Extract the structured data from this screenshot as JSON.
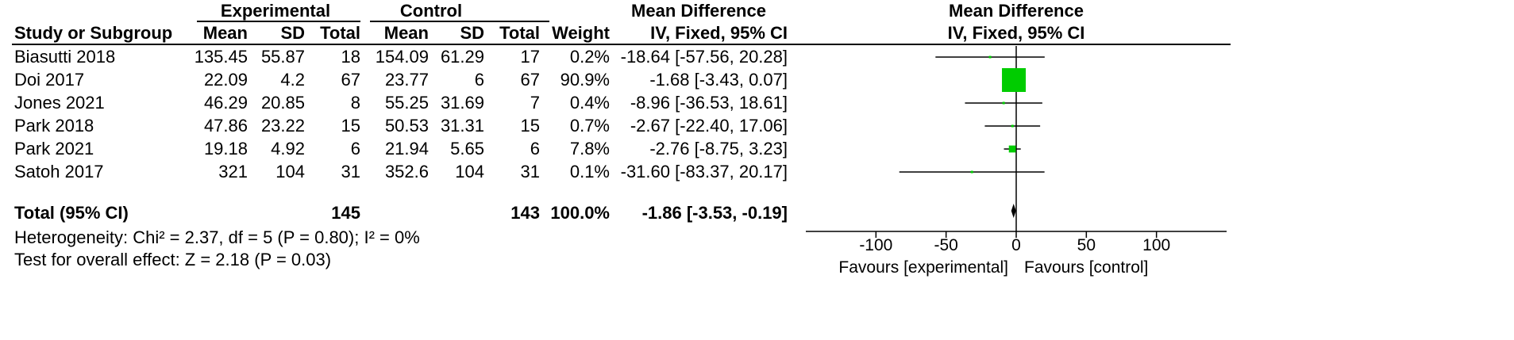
{
  "header": {
    "group_experimental": "Experimental",
    "group_control": "Control",
    "mean_difference": "Mean Difference",
    "col_study": "Study or Subgroup",
    "col_mean": "Mean",
    "col_sd": "SD",
    "col_total": "Total",
    "col_weight": "Weight",
    "col_md": "IV, Fixed, 95% CI",
    "plot_title": "Mean Difference",
    "plot_subtitle": "IV, Fixed, 95% CI"
  },
  "studies": [
    {
      "name": "Biasutti 2018",
      "exp_mean": "135.45",
      "exp_sd": "55.87",
      "exp_total": "18",
      "ctl_mean": "154.09",
      "ctl_sd": "61.29",
      "ctl_total": "17",
      "weight": "0.2%",
      "md_text": "-18.64 [-57.56, 20.28]"
    },
    {
      "name": "Doi 2017",
      "exp_mean": "22.09",
      "exp_sd": "4.2",
      "exp_total": "67",
      "ctl_mean": "23.77",
      "ctl_sd": "6",
      "ctl_total": "67",
      "weight": "90.9%",
      "md_text": "-1.68 [-3.43, 0.07]"
    },
    {
      "name": "Jones 2021",
      "exp_mean": "46.29",
      "exp_sd": "20.85",
      "exp_total": "8",
      "ctl_mean": "55.25",
      "ctl_sd": "31.69",
      "ctl_total": "7",
      "weight": "0.4%",
      "md_text": "-8.96 [-36.53, 18.61]"
    },
    {
      "name": "Park 2018",
      "exp_mean": "47.86",
      "exp_sd": "23.22",
      "exp_total": "15",
      "ctl_mean": "50.53",
      "ctl_sd": "31.31",
      "ctl_total": "15",
      "weight": "0.7%",
      "md_text": "-2.67 [-22.40, 17.06]"
    },
    {
      "name": "Park 2021",
      "exp_mean": "19.18",
      "exp_sd": "4.92",
      "exp_total": "6",
      "ctl_mean": "21.94",
      "ctl_sd": "5.65",
      "ctl_total": "6",
      "weight": "7.8%",
      "md_text": "-2.76 [-8.75, 3.23]"
    },
    {
      "name": "Satoh 2017",
      "exp_mean": "321",
      "exp_sd": "104",
      "exp_total": "31",
      "ctl_mean": "352.6",
      "ctl_sd": "104",
      "ctl_total": "31",
      "weight": "0.1%",
      "md_text": "-31.60 [-83.37, 20.17]"
    }
  ],
  "total": {
    "label": "Total (95% CI)",
    "exp_total": "145",
    "ctl_total": "143",
    "weight": "100.0%",
    "md_text": "-1.86 [-3.53, -0.19]"
  },
  "footer": {
    "heterogeneity": "Heterogeneity: Chi² = 2.37, df = 5 (P = 0.80); I² = 0%",
    "overall_effect": "Test for overall effect: Z = 2.18 (P = 0.03)",
    "favours_experimental": "Favours [experimental]",
    "favours_control": "Favours [control]"
  },
  "colors": {
    "marker": "#00cc00",
    "line": "#000000"
  },
  "chart_data": {
    "type": "forest",
    "title": "Mean Difference",
    "subtitle": "IV, Fixed, 95% CI",
    "xlim": [
      -150,
      150
    ],
    "xticks": [
      -100,
      -50,
      0,
      50,
      100
    ],
    "xtick_labels": [
      "-100",
      "-50",
      "0",
      "50",
      "100"
    ],
    "studies": [
      {
        "name": "Biasutti 2018",
        "estimate": -18.64,
        "lower": -57.56,
        "upper": 20.28,
        "weight": 0.2
      },
      {
        "name": "Doi 2017",
        "estimate": -1.68,
        "lower": -3.43,
        "upper": 0.07,
        "weight": 90.9
      },
      {
        "name": "Jones 2021",
        "estimate": -8.96,
        "lower": -36.53,
        "upper": 18.61,
        "weight": 0.4
      },
      {
        "name": "Park 2018",
        "estimate": -2.67,
        "lower": -22.4,
        "upper": 17.06,
        "weight": 0.7
      },
      {
        "name": "Park 2021",
        "estimate": -2.76,
        "lower": -8.75,
        "upper": 3.23,
        "weight": 7.8
      },
      {
        "name": "Satoh 2017",
        "estimate": -31.6,
        "lower": -83.37,
        "upper": 20.17,
        "weight": 0.1
      }
    ],
    "pooled": {
      "estimate": -1.86,
      "lower": -3.53,
      "upper": -0.19
    },
    "left_label": "Favours [experimental]",
    "right_label": "Favours [control]"
  }
}
